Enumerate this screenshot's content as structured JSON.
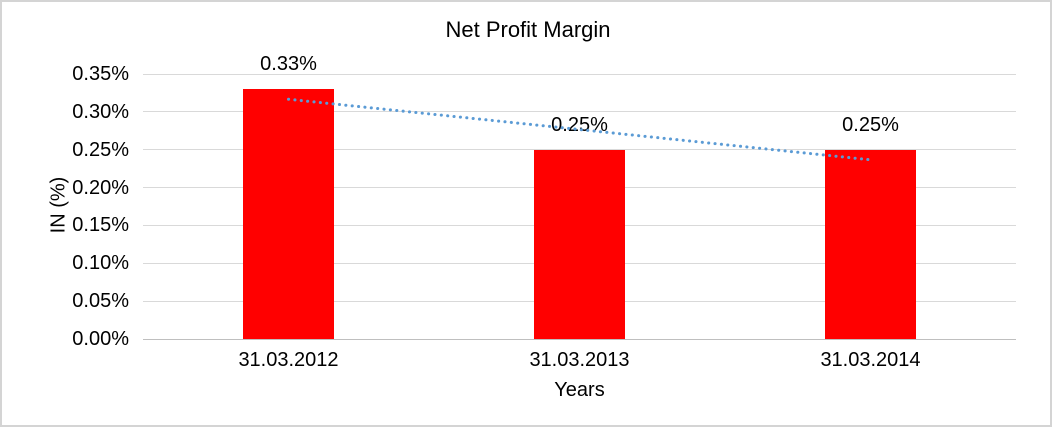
{
  "colors": {
    "bar": "#FF0000",
    "trendline": "#5B9BD5",
    "gridline": "#D9D9D9",
    "axis_line": "#BFBFBF",
    "border": "#D4D4D4",
    "text": "#000000"
  },
  "chart_data": {
    "type": "bar",
    "title": "Net Profit Margin",
    "categories": [
      "31.03.2012",
      "31.03.2013",
      "31.03.2014"
    ],
    "values": [
      0.33,
      0.25,
      0.25
    ],
    "data_labels": [
      "0.33%",
      "0.25%",
      "0.25%"
    ],
    "xlabel": "Years",
    "ylabel": "IN (%)",
    "ylim": [
      0,
      0.35
    ],
    "ytick_step": 0.05,
    "ytick_labels": [
      "0.00%",
      "0.05%",
      "0.10%",
      "0.15%",
      "0.20%",
      "0.25%",
      "0.30%",
      "0.35%"
    ],
    "grid": "horizontal",
    "legend": "none",
    "bar_color": "#FF0000",
    "trendline": {
      "type": "linear",
      "style": "dotted",
      "color": "#5B9BD5",
      "series": "Net Profit Margin"
    }
  }
}
